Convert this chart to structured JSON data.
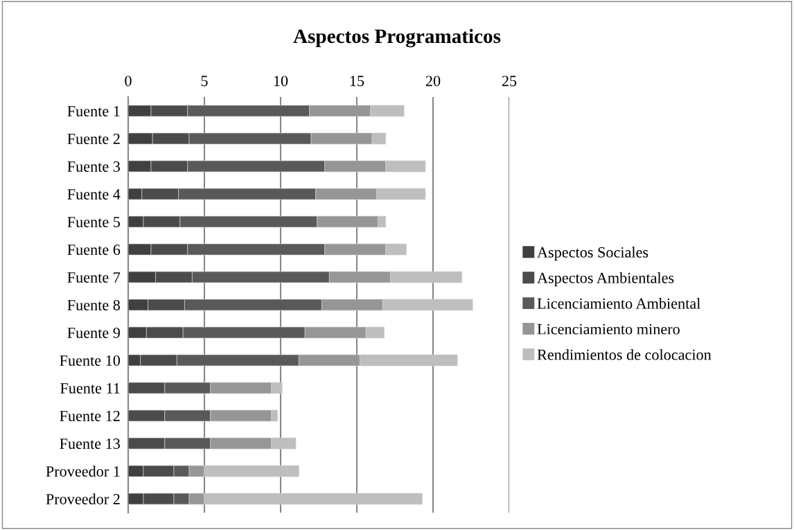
{
  "chart_data": {
    "type": "bar",
    "orientation": "horizontal",
    "stacked": true,
    "title": "Aspectos Programaticos",
    "categories": [
      "Fuente 1",
      "Fuente 2",
      "Fuente 3",
      "Fuente 4",
      "Fuente 5",
      "Fuente 6",
      "Fuente 7",
      "Fuente 8",
      "Fuente 9",
      "Fuente 10",
      "Fuente 11",
      "Fuente 12",
      "Fuente 13",
      "Proveedor 1",
      "Proveedor 2"
    ],
    "series": [
      {
        "name": "Aspectos Sociales",
        "color": "#404040",
        "values": [
          1.5,
          1.6,
          1.5,
          0.9,
          1.0,
          1.5,
          1.8,
          1.3,
          1.2,
          0.8,
          null,
          null,
          null,
          1.0,
          1.0
        ]
      },
      {
        "name": "Aspectos Ambientales",
        "color": "#4b4b4b",
        "values": [
          2.4,
          2.4,
          2.4,
          2.4,
          2.4,
          2.4,
          2.4,
          2.4,
          2.4,
          2.4,
          2.4,
          2.4,
          2.4,
          2.0,
          2.0
        ]
      },
      {
        "name": "Licenciamiento Ambiental",
        "color": "#595959",
        "values": [
          8.0,
          8.0,
          9.0,
          9.0,
          9.0,
          9.0,
          9.0,
          9.0,
          8.0,
          8.0,
          3.0,
          3.0,
          3.0,
          1.0,
          1.0
        ]
      },
      {
        "name": "Licenciamiento minero",
        "color": "#969696",
        "values": [
          4.0,
          4.0,
          4.0,
          4.0,
          4.0,
          4.0,
          4.0,
          4.0,
          4.0,
          4.0,
          4.0,
          4.0,
          4.0,
          1.0,
          1.0
        ]
      },
      {
        "name": "Rendimientos de colocacion",
        "color": "#bebebe",
        "values": [
          2.2,
          0.9,
          2.6,
          3.2,
          0.5,
          1.35,
          4.7,
          5.9,
          1.2,
          6.4,
          0.7,
          0.4,
          1.6,
          6.2,
          14.3
        ]
      }
    ],
    "xlim": [
      0,
      25
    ],
    "xticks": [
      0,
      5,
      10,
      15,
      20,
      25
    ],
    "grid": "x",
    "legend": "right"
  }
}
